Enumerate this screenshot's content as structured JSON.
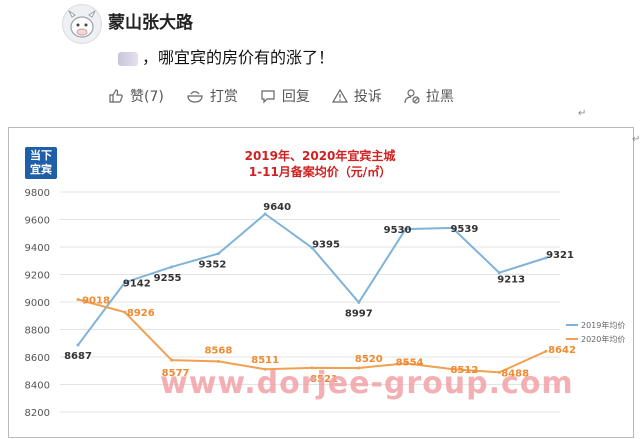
{
  "post": {
    "username": "蒙山张大路",
    "text": "，哪宜宾的房价有的涨了！",
    "actions": [
      {
        "icon": "thumbs-up-icon",
        "label": "赞(7)"
      },
      {
        "icon": "tip-bowl-icon",
        "label": "打赏"
      },
      {
        "icon": "comment-icon",
        "label": "回复"
      },
      {
        "icon": "warning-icon",
        "label": "投诉"
      },
      {
        "icon": "block-user-icon",
        "label": "拉黑"
      }
    ]
  },
  "chart_logo": {
    "line1": "当下",
    "line2": "宜宾"
  },
  "chart_data": {
    "type": "line",
    "title": "2019年、2020年宜宾主城",
    "subtitle": "1-11月备案均价（元/㎡）",
    "ylim": [
      8200,
      9800
    ],
    "yticks": [
      8200,
      8400,
      8600,
      8800,
      9000,
      9200,
      9400,
      9600,
      9800
    ],
    "grid": true,
    "legend_position": "right",
    "series": [
      {
        "name": "2019年均价",
        "color": "#7fb3d9",
        "values": [
          8687,
          9142,
          9255,
          9352,
          9640,
          9395,
          8997,
          9530,
          9539,
          9213,
          9321
        ]
      },
      {
        "name": "2020年均价",
        "color": "#f0a050",
        "values": [
          9018,
          8926,
          8577,
          8568,
          8511,
          8521,
          8520,
          8554,
          8512,
          8488,
          8642
        ]
      }
    ]
  },
  "watermark": "www.dorjee-group.com"
}
